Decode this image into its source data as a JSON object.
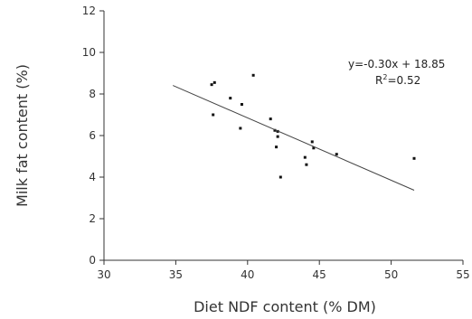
{
  "chart_data": {
    "type": "scatter",
    "xlabel": "Diet NDF content (% DM)",
    "ylabel": "Milk fat content (%)",
    "xlim": [
      30,
      55
    ],
    "ylim": [
      0,
      12
    ],
    "xticks": [
      30,
      35,
      40,
      45,
      50,
      55
    ],
    "yticks": [
      0,
      2,
      4,
      6,
      8,
      10,
      12
    ],
    "grid": false,
    "points": [
      {
        "x": 37.5,
        "y": 8.45
      },
      {
        "x": 37.7,
        "y": 8.55
      },
      {
        "x": 37.6,
        "y": 7.0
      },
      {
        "x": 38.8,
        "y": 7.8
      },
      {
        "x": 39.6,
        "y": 7.5
      },
      {
        "x": 39.5,
        "y": 6.35
      },
      {
        "x": 40.4,
        "y": 8.9
      },
      {
        "x": 41.6,
        "y": 6.8
      },
      {
        "x": 41.9,
        "y": 6.25
      },
      {
        "x": 42.1,
        "y": 6.2
      },
      {
        "x": 42.1,
        "y": 5.95
      },
      {
        "x": 42.0,
        "y": 5.45
      },
      {
        "x": 42.3,
        "y": 4.0
      },
      {
        "x": 44.0,
        "y": 4.95
      },
      {
        "x": 44.1,
        "y": 4.6
      },
      {
        "x": 44.5,
        "y": 5.7
      },
      {
        "x": 44.6,
        "y": 5.4
      },
      {
        "x": 46.2,
        "y": 5.1
      },
      {
        "x": 51.6,
        "y": 4.9
      }
    ],
    "trendline": {
      "slope": -0.3,
      "intercept": 18.85,
      "x_range": [
        34.8,
        51.6
      ]
    },
    "annotation": {
      "equation": "y=-0.30x + 18.85",
      "r2_prefix": "R",
      "r2_sup": "2",
      "r2_value": "=0.52"
    }
  }
}
